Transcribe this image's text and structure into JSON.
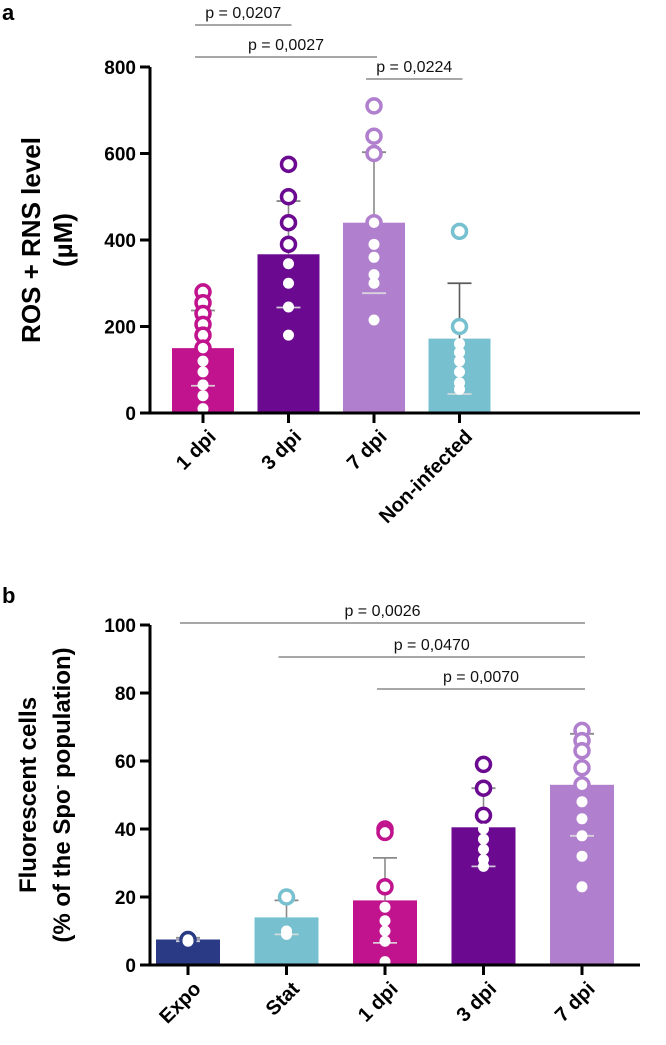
{
  "chart_data": [
    {
      "panel": "a",
      "type": "bar",
      "title": "",
      "xlabel": "",
      "ylabel_lines": [
        "ROS + RNS level",
        "(µM)"
      ],
      "ylim": [
        0,
        800
      ],
      "yticks": [
        0,
        200,
        400,
        600,
        800
      ],
      "categories": [
        "1 dpi",
        "3 dpi",
        "7 dpi",
        "Non-infected"
      ],
      "values": [
        150,
        367,
        440,
        172
      ],
      "sd": [
        87,
        123,
        163,
        128
      ],
      "points": [
        [
          280,
          255,
          230,
          205,
          180,
          150,
          120,
          95,
          65,
          40,
          10
        ],
        [
          575,
          500,
          440,
          390,
          345,
          300,
          245,
          180
        ],
        [
          710,
          640,
          600,
          440,
          390,
          360,
          320,
          300,
          215
        ],
        [
          420,
          200,
          160,
          140,
          120,
          95,
          70,
          55
        ]
      ],
      "colors": [
        "#c0138d",
        "#6b0a91",
        "#b07fce",
        "#76c0d0"
      ],
      "comparisons": [
        {
          "from": 0,
          "to": 1,
          "label": "p = 0,0207"
        },
        {
          "from": 0,
          "to": 2,
          "label": "p = 0,0027"
        },
        {
          "from": 2,
          "to": 3,
          "label": "p = 0,0224"
        }
      ]
    },
    {
      "panel": "b",
      "type": "bar",
      "title": "",
      "xlabel": "",
      "ylabel_lines": [
        "Fluorescent cells",
        "(% of the Spo",
        "-",
        " population)"
      ],
      "ylim": [
        0,
        100
      ],
      "yticks": [
        0,
        20,
        40,
        60,
        80,
        100
      ],
      "categories": [
        "Expo",
        "Stat",
        "1 dpi",
        "3 dpi",
        "7 dpi"
      ],
      "values": [
        7.5,
        14,
        19,
        40.5,
        53
      ],
      "sd": [
        0.5,
        5,
        12.5,
        11.5,
        15
      ],
      "points": [
        [
          7.5,
          7,
          7.2
        ],
        [
          20,
          10,
          9
        ],
        [
          40,
          39,
          23,
          17,
          13,
          10,
          7,
          1
        ],
        [
          59,
          52,
          44,
          40,
          37,
          34,
          31,
          29
        ],
        [
          69,
          66,
          63,
          58,
          53,
          48,
          43,
          38,
          32,
          23
        ]
      ],
      "colors": [
        "#2a3a84",
        "#76c0d0",
        "#c0138d",
        "#6b0a91",
        "#b07fce"
      ],
      "comparisons": [
        {
          "from": 0,
          "to": 4,
          "label": "p = 0,0026"
        },
        {
          "from": 1,
          "to": 4,
          "label": "p = 0,0470"
        },
        {
          "from": 2,
          "to": 4,
          "label": "p = 0,0070"
        }
      ]
    }
  ]
}
